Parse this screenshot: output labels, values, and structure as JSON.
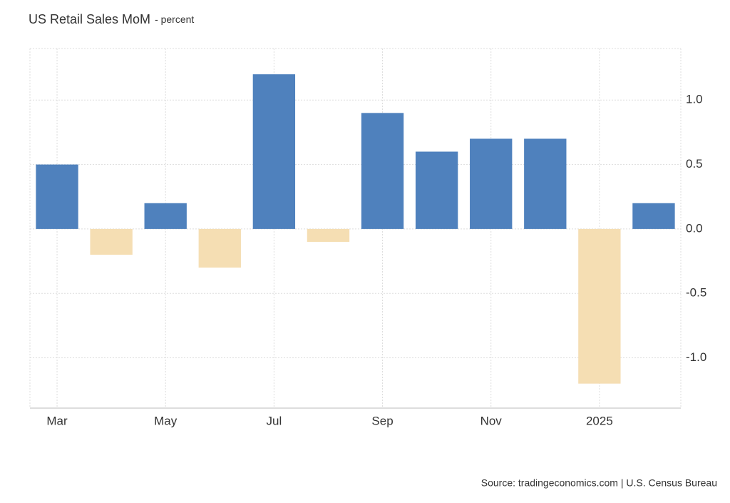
{
  "chart_data": {
    "type": "bar",
    "title": "US Retail Sales MoM",
    "subtitle": "- percent",
    "categories": [
      "Mar",
      null,
      "May",
      null,
      "Jul",
      null,
      "Sep",
      null,
      "Nov",
      null,
      "2025",
      null
    ],
    "values": [
      0.5,
      -0.2,
      0.2,
      -0.3,
      1.2,
      -0.1,
      0.9,
      0.6,
      0.7,
      0.7,
      -1.2,
      0.2
    ],
    "positive_color": "#4f81bd",
    "negative_color": "#f5deb3",
    "ylim": [
      -1.39,
      1.4
    ],
    "yticks": [
      {
        "value": -1,
        "label": "-1.0"
      },
      -0.5,
      {
        "value": 0,
        "label": "0.0"
      },
      0.5,
      {
        "value": 1,
        "label": "1.0"
      }
    ],
    "grid": true,
    "source": "Source: tradingeconomics.com | U.S. Census Bureau"
  }
}
